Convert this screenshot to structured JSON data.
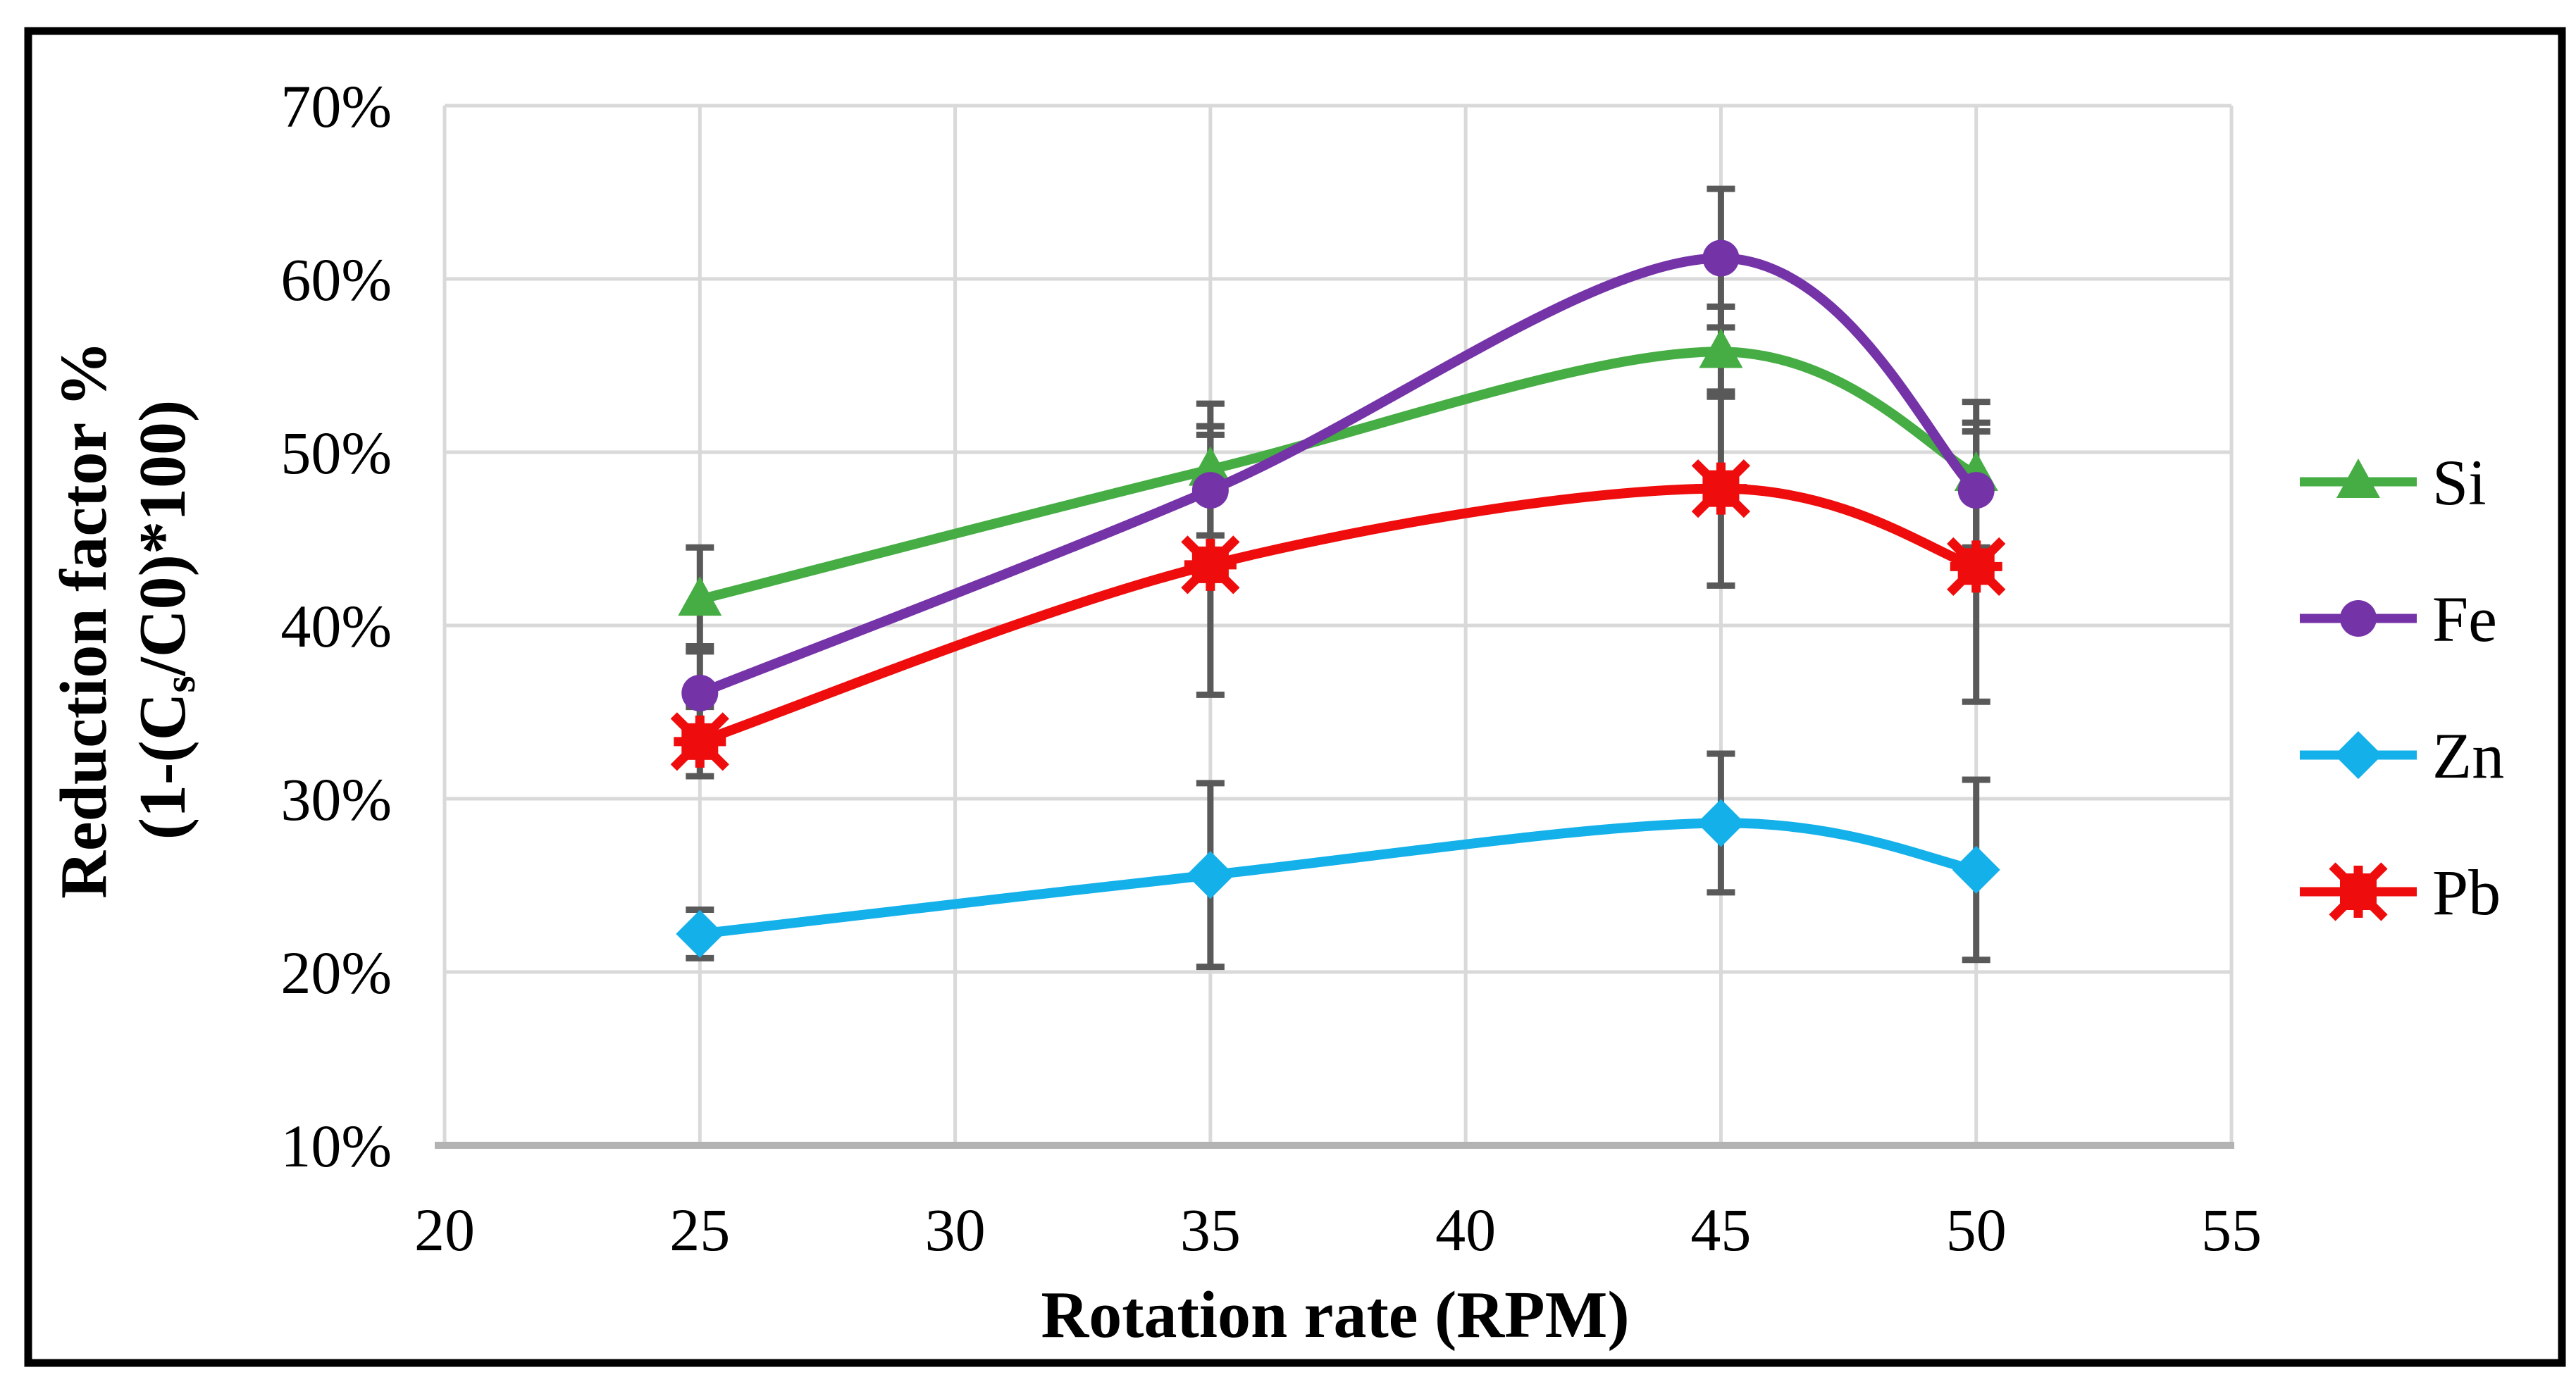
{
  "figure": {
    "background": "#ffffff",
    "frame_color": "#000000"
  },
  "chart_data": {
    "type": "line",
    "title": "",
    "xlabel": "Rotation rate (RPM)",
    "ylabel_line1": "Reduction factor %",
    "ylabel_line2": "(1-(Cs/C0)*100)",
    "ylabel_line2_parts": {
      "pre": "(1-(C",
      "sub": "s",
      "post": "/C0)*100)"
    },
    "x": [
      25,
      35,
      45,
      50
    ],
    "series": [
      {
        "name": "Si",
        "color": "#45ad43",
        "marker": "triangle",
        "values": [
          41.5,
          49.0,
          55.8,
          48.7
        ],
        "error": [
          3.0,
          3.8,
          2.6,
          4.2
        ]
      },
      {
        "name": "Fe",
        "color": "#7533a8",
        "marker": "circle",
        "values": [
          36.1,
          47.8,
          61.2,
          47.8
        ],
        "error": [
          2.7,
          3.7,
          4.0,
          3.9
        ]
      },
      {
        "name": "Zn",
        "color": "#14b0ea",
        "marker": "diamond",
        "values": [
          22.2,
          25.6,
          28.6,
          25.9
        ],
        "error": [
          1.4,
          5.3,
          4.0,
          5.2
        ]
      },
      {
        "name": "Pb",
        "color": "#ee0c0c",
        "marker": "x-square",
        "values": [
          33.3,
          43.5,
          47.9,
          43.4
        ],
        "error": [
          2.0,
          7.5,
          5.6,
          7.8
        ]
      }
    ],
    "legend_order": [
      "Si",
      "Fe",
      "Zn",
      "Pb"
    ],
    "legend_position": "right",
    "x_ticks": [
      20,
      25,
      30,
      35,
      40,
      45,
      50,
      55
    ],
    "y_ticks": [
      {
        "value": 10,
        "label": "10%"
      },
      {
        "value": 20,
        "label": "20%"
      },
      {
        "value": 30,
        "label": "30%"
      },
      {
        "value": 40,
        "label": "40%"
      },
      {
        "value": 50,
        "label": "50%"
      },
      {
        "value": 60,
        "label": "60%"
      },
      {
        "value": 70,
        "label": "70%"
      }
    ],
    "xlim": [
      20,
      55
    ],
    "ylim": [
      10,
      70
    ],
    "grid": true,
    "gridline_color": "#d9d9d9",
    "axis_line_color": "#b3b3b3",
    "error_bar_color": "#595959"
  }
}
